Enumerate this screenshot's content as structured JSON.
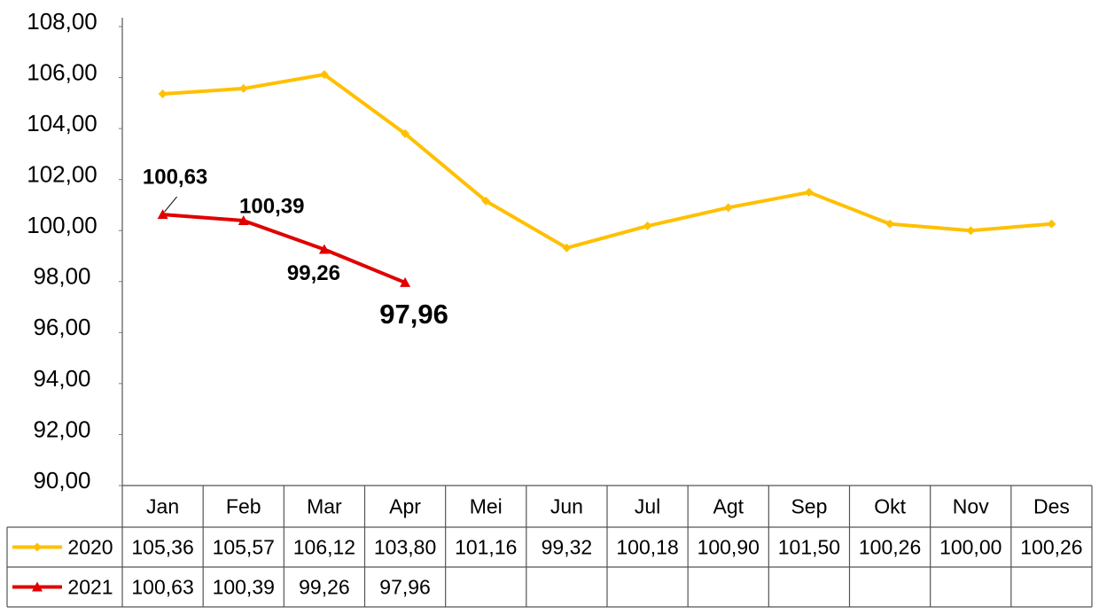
{
  "chart_data": {
    "type": "line",
    "categories": [
      "Jan",
      "Feb",
      "Mar",
      "Apr",
      "Mei",
      "Jun",
      "Jul",
      "Agt",
      "Sep",
      "Okt",
      "Nov",
      "Des"
    ],
    "series": [
      {
        "name": "2020",
        "color": "#FFC000",
        "marker": "diamond",
        "values": [
          105.36,
          105.57,
          106.12,
          103.8,
          101.16,
          99.32,
          100.18,
          100.9,
          101.5,
          100.26,
          100.0,
          100.26
        ],
        "value_labels": [
          "105,36",
          "105,57",
          "106,12",
          "103,80",
          "101,16",
          "99,32",
          "100,18",
          "100,90",
          "101,50",
          "100,26",
          "100,00",
          "100,26"
        ],
        "data_labels": false
      },
      {
        "name": "2021",
        "color": "#E00000",
        "marker": "triangle",
        "values": [
          100.63,
          100.39,
          99.26,
          97.96,
          null,
          null,
          null,
          null,
          null,
          null,
          null,
          null
        ],
        "value_labels": [
          "100,63",
          "100,39",
          "99,26",
          "97,96",
          null,
          null,
          null,
          null,
          null,
          null,
          null,
          null
        ],
        "data_labels": true
      }
    ],
    "ylim": [
      90,
      108
    ],
    "yticks": [
      {
        "value": 90,
        "label": "90,00"
      },
      {
        "value": 92,
        "label": "92,00"
      },
      {
        "value": 94,
        "label": "94,00"
      },
      {
        "value": 96,
        "label": "96,00"
      },
      {
        "value": 98,
        "label": "98,00"
      },
      {
        "value": 100,
        "label": "100,00"
      },
      {
        "value": 102,
        "label": "102,00"
      },
      {
        "value": 104,
        "label": "104,00"
      },
      {
        "value": 106,
        "label": "106,00"
      },
      {
        "value": 108,
        "label": "108,00"
      }
    ],
    "grid": false,
    "data_table": true
  }
}
